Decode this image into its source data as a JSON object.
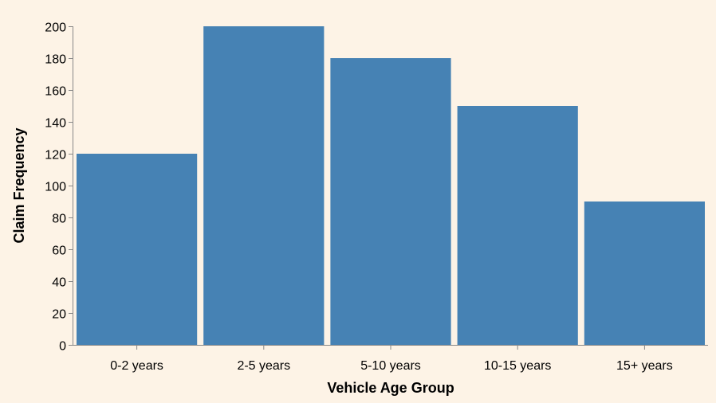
{
  "chart_data": {
    "type": "bar",
    "title": "",
    "xlabel": "Vehicle Age Group",
    "ylabel": "Claim Frequency",
    "categories": [
      "0-2 years",
      "2-5 years",
      "5-10 years",
      "10-15 years",
      "15+ years"
    ],
    "values": [
      120,
      200,
      180,
      150,
      90
    ],
    "ylim": [
      0,
      200
    ],
    "yticks": [
      "0",
      "20",
      "40",
      "60",
      "80",
      "100",
      "120",
      "140",
      "160",
      "180",
      "200"
    ],
    "grid": false,
    "colors": {
      "bar": "#4682b4",
      "background": "#fdf3e6"
    }
  }
}
